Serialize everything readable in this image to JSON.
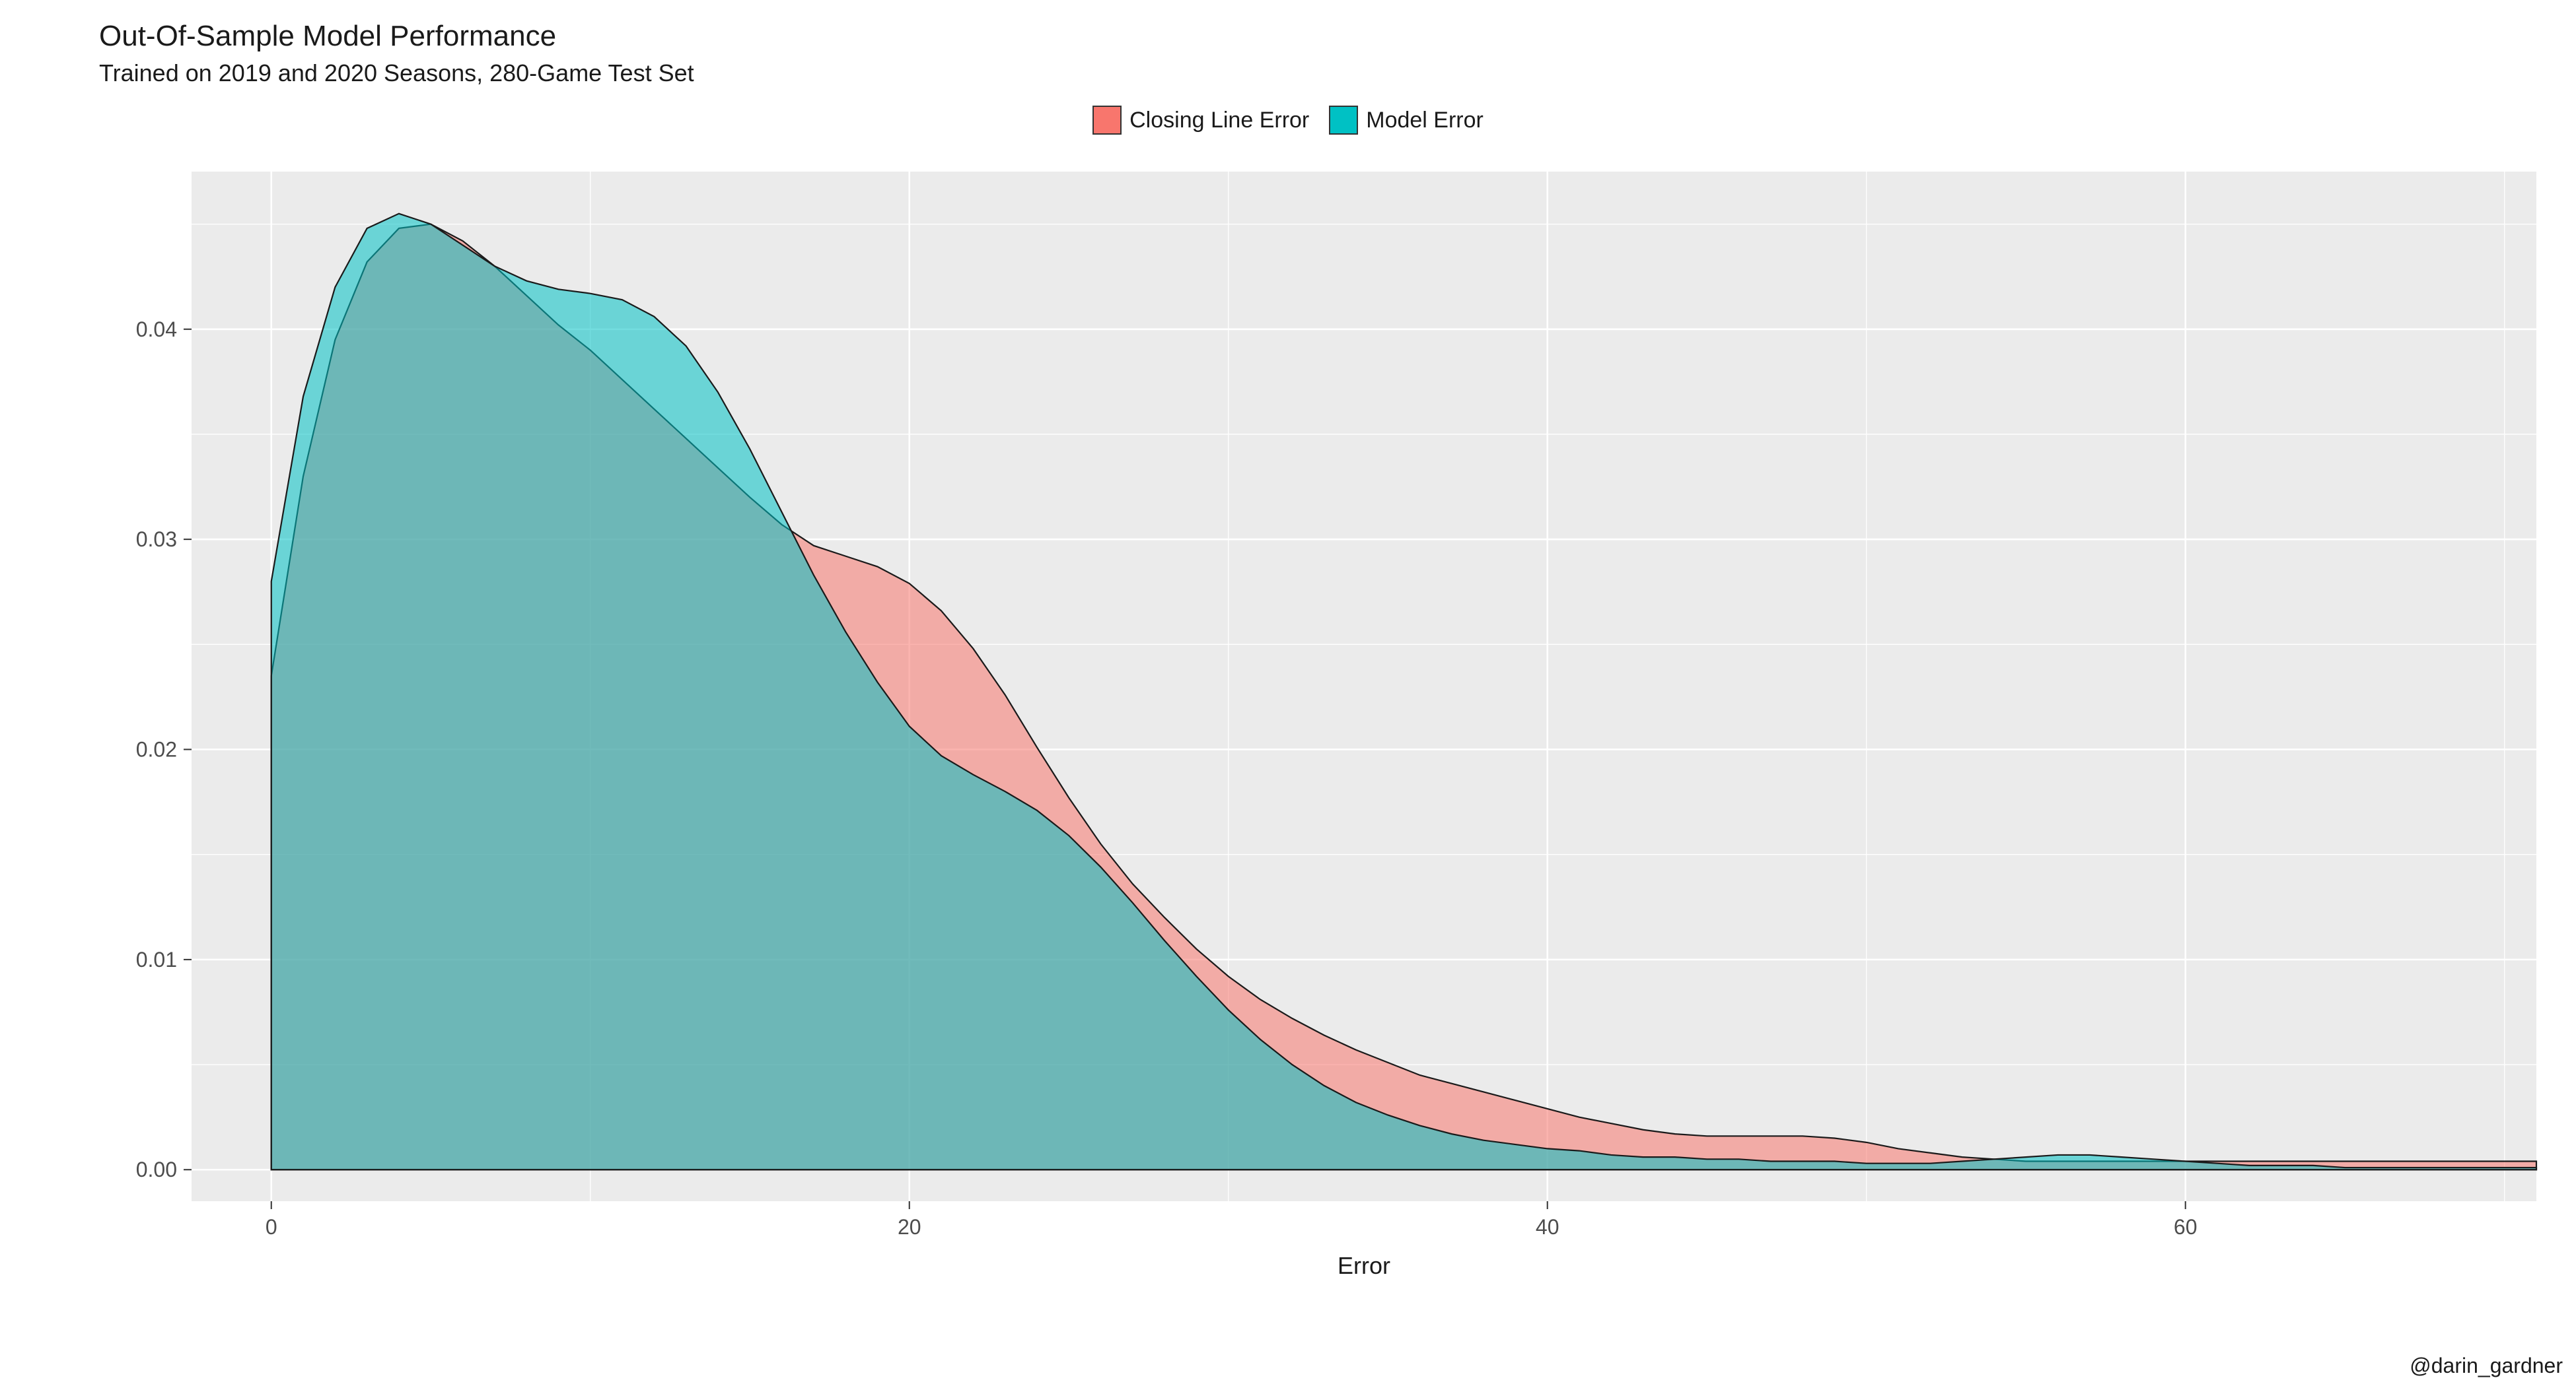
{
  "title": "Out-Of-Sample Model Performance",
  "subtitle": "Trained on 2019 and 2020 Seasons, 280-Game Test Set",
  "credit": "@darin_gardner",
  "legend": [
    {
      "label": "Closing Line Error",
      "fill": "#f8766d"
    },
    {
      "label": "Model Error",
      "fill": "#00c1c4"
    }
  ],
  "chart": {
    "type": "density",
    "background_color": "#ffffff",
    "panel_color": "#ebebeb",
    "grid_major_color": "#ffffff",
    "grid_minor_color": "#ffffff",
    "stroke_color": "#1a1a1a",
    "fill_opacity": 0.55,
    "x": {
      "label": "Error",
      "lim": [
        -2.5,
        71
      ],
      "ticks": [
        0,
        20,
        40,
        60
      ],
      "minor_step": 10,
      "label_fontsize": 36,
      "tick_fontsize": 32
    },
    "y": {
      "label": "",
      "lim": [
        -0.0015,
        0.0475
      ],
      "ticks": [
        0.0,
        0.01,
        0.02,
        0.03,
        0.04
      ],
      "minor_step": 0.005,
      "tick_fontsize": 32
    },
    "series": [
      {
        "name": "Closing Line Error",
        "fill": "#f8766d",
        "points": [
          [
            0,
            0.0235
          ],
          [
            1,
            0.033
          ],
          [
            2,
            0.0395
          ],
          [
            3,
            0.0432
          ],
          [
            4,
            0.0448
          ],
          [
            5,
            0.045
          ],
          [
            6,
            0.0442
          ],
          [
            7,
            0.043
          ],
          [
            8,
            0.0416
          ],
          [
            9,
            0.0402
          ],
          [
            10,
            0.039
          ],
          [
            11,
            0.0376
          ],
          [
            12,
            0.0362
          ],
          [
            13,
            0.0348
          ],
          [
            14,
            0.0334
          ],
          [
            15,
            0.032
          ],
          [
            16,
            0.0307
          ],
          [
            17,
            0.0297
          ],
          [
            18,
            0.0292
          ],
          [
            19,
            0.0287
          ],
          [
            20,
            0.0279
          ],
          [
            21,
            0.0266
          ],
          [
            22,
            0.0248
          ],
          [
            23,
            0.0226
          ],
          [
            24,
            0.0201
          ],
          [
            25,
            0.0177
          ],
          [
            26,
            0.0155
          ],
          [
            27,
            0.0136
          ],
          [
            28,
            0.012
          ],
          [
            29,
            0.0105
          ],
          [
            30,
            0.0092
          ],
          [
            31,
            0.0081
          ],
          [
            32,
            0.0072
          ],
          [
            33,
            0.0064
          ],
          [
            34,
            0.0057
          ],
          [
            35,
            0.0051
          ],
          [
            36,
            0.0045
          ],
          [
            37,
            0.0041
          ],
          [
            38,
            0.0037
          ],
          [
            39,
            0.0033
          ],
          [
            40,
            0.0029
          ],
          [
            41,
            0.0025
          ],
          [
            42,
            0.0022
          ],
          [
            43,
            0.0019
          ],
          [
            44,
            0.0017
          ],
          [
            45,
            0.0016
          ],
          [
            46,
            0.0016
          ],
          [
            47,
            0.0016
          ],
          [
            48,
            0.0016
          ],
          [
            49,
            0.0015
          ],
          [
            50,
            0.0013
          ],
          [
            51,
            0.001
          ],
          [
            52,
            0.0008
          ],
          [
            53,
            0.0006
          ],
          [
            54,
            0.0005
          ],
          [
            55,
            0.0004
          ],
          [
            56,
            0.0004
          ],
          [
            57,
            0.0004
          ],
          [
            58,
            0.0004
          ],
          [
            59,
            0.0004
          ],
          [
            60,
            0.0004
          ],
          [
            61,
            0.0004
          ],
          [
            62,
            0.0004
          ],
          [
            63,
            0.0004
          ],
          [
            64,
            0.0004
          ],
          [
            65,
            0.0004
          ],
          [
            66,
            0.0004
          ],
          [
            67,
            0.0004
          ],
          [
            68,
            0.0004
          ],
          [
            69,
            0.0004
          ],
          [
            70,
            0.0004
          ],
          [
            71,
            0.0004
          ]
        ]
      },
      {
        "name": "Model Error",
        "fill": "#00c1c4",
        "points": [
          [
            0,
            0.028
          ],
          [
            1,
            0.0368
          ],
          [
            2,
            0.042
          ],
          [
            3,
            0.0448
          ],
          [
            4,
            0.0455
          ],
          [
            5,
            0.045
          ],
          [
            6,
            0.044
          ],
          [
            7,
            0.043
          ],
          [
            8,
            0.0423
          ],
          [
            9,
            0.0419
          ],
          [
            10,
            0.0417
          ],
          [
            11,
            0.0414
          ],
          [
            12,
            0.0406
          ],
          [
            13,
            0.0392
          ],
          [
            14,
            0.037
          ],
          [
            15,
            0.0343
          ],
          [
            16,
            0.0313
          ],
          [
            17,
            0.0283
          ],
          [
            18,
            0.0256
          ],
          [
            19,
            0.0232
          ],
          [
            20,
            0.0211
          ],
          [
            21,
            0.0197
          ],
          [
            22,
            0.0188
          ],
          [
            23,
            0.018
          ],
          [
            24,
            0.0171
          ],
          [
            25,
            0.0159
          ],
          [
            26,
            0.0144
          ],
          [
            27,
            0.0127
          ],
          [
            28,
            0.0109
          ],
          [
            29,
            0.0092
          ],
          [
            30,
            0.0076
          ],
          [
            31,
            0.0062
          ],
          [
            32,
            0.005
          ],
          [
            33,
            0.004
          ],
          [
            34,
            0.0032
          ],
          [
            35,
            0.0026
          ],
          [
            36,
            0.0021
          ],
          [
            37,
            0.0017
          ],
          [
            38,
            0.0014
          ],
          [
            39,
            0.0012
          ],
          [
            40,
            0.001
          ],
          [
            41,
            0.0009
          ],
          [
            42,
            0.0007
          ],
          [
            43,
            0.0006
          ],
          [
            44,
            0.0006
          ],
          [
            45,
            0.0005
          ],
          [
            46,
            0.0005
          ],
          [
            47,
            0.0004
          ],
          [
            48,
            0.0004
          ],
          [
            49,
            0.0004
          ],
          [
            50,
            0.0003
          ],
          [
            51,
            0.0003
          ],
          [
            52,
            0.0003
          ],
          [
            53,
            0.0004
          ],
          [
            54,
            0.0005
          ],
          [
            55,
            0.0006
          ],
          [
            56,
            0.0007
          ],
          [
            57,
            0.0007
          ],
          [
            58,
            0.0006
          ],
          [
            59,
            0.0005
          ],
          [
            60,
            0.0004
          ],
          [
            61,
            0.0003
          ],
          [
            62,
            0.0002
          ],
          [
            63,
            0.0002
          ],
          [
            64,
            0.0002
          ],
          [
            65,
            0.0001
          ],
          [
            66,
            0.0001
          ],
          [
            67,
            0.0001
          ],
          [
            68,
            0.0001
          ],
          [
            69,
            0.0001
          ],
          [
            70,
            0.0001
          ],
          [
            71,
            0.0001
          ]
        ]
      }
    ]
  }
}
